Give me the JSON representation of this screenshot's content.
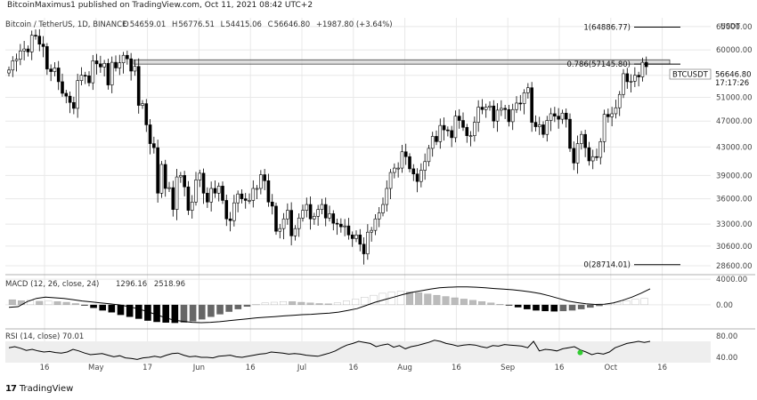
{
  "header": {
    "text": "BitcoinMaximus1 published on TradingView.com, Oct 11, 2021 08:42 UTC+2"
  },
  "footer": {
    "logo": "17",
    "brand": "TradingView"
  },
  "symbol": {
    "title": "Bitcoin / TetherUS, 1D, BINANCE",
    "ohlc": [
      {
        "label": "O",
        "value": "54659.01"
      },
      {
        "label": "H",
        "value": "56776.51"
      },
      {
        "label": "L",
        "value": "54415.06"
      },
      {
        "label": "C",
        "value": "56646.80"
      },
      {
        "label": "",
        "value": "+1987.80 (+3.64%)"
      }
    ],
    "ticker": "BTCUSDT",
    "last_price": "56646.80",
    "countdown": "17:17:26"
  },
  "colors": {
    "background": "#ffffff",
    "up": "#ffffff",
    "down": "#000000",
    "grid": "#e8e8e8",
    "line": "#000000",
    "rsi_band": "#eeeeee",
    "signal_dot": "#32cd32"
  },
  "chart_data": [
    {
      "type": "candlestick",
      "title": "Bitcoin / TetherUS, 1D, BINANCE",
      "currency_label": "USDT",
      "x_ticks": [
        "16",
        "May",
        "17",
        "Jun",
        "16",
        "Jul",
        "16",
        "Aug",
        "16",
        "Sep",
        "16",
        "Oct",
        "16"
      ],
      "y_ticks": [
        28600,
        30600,
        33000,
        36000,
        39000,
        43000,
        47000,
        51000,
        55000,
        60000,
        65000
      ],
      "y_tick_labels": [
        "28600.00",
        "30600.00",
        "33000.00",
        "36000.00",
        "39000.00",
        "43000.00",
        "47000.00",
        "51000.00",
        "55000.00",
        "60000.00",
        "65000.00"
      ],
      "y_scale": "log",
      "ylim": [
        28000,
        67000
      ],
      "date_range": [
        "2021-04-07",
        "2021-10-10"
      ],
      "candles_close": [
        56000,
        57800,
        58100,
        59800,
        60200,
        59600,
        63100,
        62900,
        61200,
        60700,
        56200,
        55700,
        56400,
        53800,
        51700,
        51200,
        50100,
        49100,
        54000,
        55000,
        54900,
        53600,
        57800,
        57200,
        56600,
        57300,
        53200,
        57500,
        56400,
        57400,
        58900,
        58200,
        55800,
        56700,
        49600,
        49900,
        46400,
        43500,
        42900,
        36700,
        40500,
        37300,
        37400,
        34700,
        38800,
        39000,
        37500,
        34600,
        35600,
        38400,
        39300,
        36700,
        35600,
        37300,
        36700,
        37600,
        35800,
        33600,
        33400,
        35500,
        36600,
        36000,
        35800,
        35800,
        37300,
        37300,
        39100,
        38300,
        35600,
        35100,
        32200,
        32500,
        33600,
        34600,
        31700,
        32500,
        33700,
        34600,
        35300,
        33600,
        33900,
        34700,
        35300,
        33700,
        34200,
        33100,
        33000,
        32700,
        32800,
        31800,
        31400,
        31800,
        30800,
        29800,
        32100,
        32300,
        33600,
        34300,
        35300,
        37300,
        39400,
        40000,
        40000,
        42300,
        41600,
        39900,
        39200,
        38200,
        39700,
        40900,
        42800,
        44600,
        43800,
        46300,
        45600,
        45500,
        44400,
        47800,
        47100,
        46000,
        44700,
        44700,
        46800,
        49300,
        48900,
        49300,
        49500,
        47000,
        48800,
        49100,
        48900,
        46900,
        48900,
        50000,
        49900,
        51800,
        52700,
        46800,
        46100,
        46400,
        44900,
        47100,
        48200,
        47800,
        47300,
        48300,
        47300,
        42800,
        40700,
        43500,
        44900,
        42900,
        41000,
        41600,
        41500,
        43800,
        48100,
        47700,
        48200,
        49200,
        51500,
        55300,
        53800,
        53900,
        55000,
        54700,
        57500,
        56650
      ],
      "level_lines": [
        {
          "label": "1(64886.77)",
          "value": 64886.77
        },
        {
          "label": "0.786(57145.80)",
          "value": 57145.8
        },
        {
          "label": "0(28714.01)",
          "value": 28714.01
        }
      ],
      "resistance_zone": [
        57145.8,
        58000
      ]
    },
    {
      "type": "bar+line",
      "title": "MACD (12, 26, close, 24)",
      "values_text": [
        "1296.16",
        "2518.96"
      ],
      "y_ticks": [
        0,
        4000
      ],
      "y_tick_labels": [
        "0.00",
        "4000.00"
      ],
      "ylim": [
        -3500,
        4300
      ],
      "histogram": [
        800,
        650,
        700,
        550,
        600,
        500,
        400,
        200,
        -100,
        -500,
        -900,
        -1200,
        -1600,
        -1900,
        -2200,
        -2500,
        -2700,
        -2800,
        -2850,
        -2800,
        -2600,
        -2300,
        -1900,
        -1500,
        -1100,
        -700,
        -300,
        100,
        300,
        400,
        500,
        500,
        400,
        300,
        200,
        150,
        300,
        600,
        900,
        1200,
        1500,
        1800,
        2000,
        2100,
        2000,
        1900,
        1700,
        1500,
        1300,
        1100,
        900,
        700,
        500,
        300,
        100,
        -100,
        -400,
        -700,
        -900,
        -1000,
        -1050,
        -1000,
        -900,
        -700,
        -450,
        -200,
        100,
        400,
        650,
        850,
        1000
      ],
      "line": [
        -400,
        -300,
        500,
        1000,
        1200,
        1100,
        1000,
        800,
        600,
        450,
        300,
        150,
        0,
        -250,
        -600,
        -1000,
        -1500,
        -2000,
        -2400,
        -2600,
        -2750,
        -2800,
        -2750,
        -2650,
        -2500,
        -2350,
        -2200,
        -2050,
        -1950,
        -1850,
        -1750,
        -1650,
        -1550,
        -1500,
        -1400,
        -1300,
        -1150,
        -900,
        -600,
        -100,
        400,
        800,
        1200,
        1600,
        1950,
        2200,
        2450,
        2650,
        2750,
        2800,
        2800,
        2750,
        2650,
        2550,
        2450,
        2350,
        2200,
        2000,
        1750,
        1400,
        1000,
        600,
        350,
        150,
        50,
        100,
        300,
        700,
        1200,
        1800,
        2500
      ]
    },
    {
      "type": "line",
      "title": "RSI (14, close)",
      "value_text": "70.01",
      "y_ticks": [
        40,
        80
      ],
      "y_tick_labels": [
        "40.00",
        "80.00"
      ],
      "ylim": [
        30,
        90
      ],
      "bands": [
        30,
        70
      ],
      "values": [
        58,
        60,
        57,
        53,
        55,
        52,
        50,
        51,
        49,
        48,
        50,
        55,
        52,
        48,
        45,
        46,
        47,
        44,
        41,
        43,
        39,
        38,
        36,
        39,
        40,
        42,
        40,
        44,
        47,
        48,
        44,
        41,
        42,
        40,
        40,
        39,
        42,
        43,
        44,
        41,
        40,
        42,
        44,
        46,
        47,
        50,
        49,
        48,
        46,
        47,
        46,
        44,
        43,
        42,
        45,
        48,
        52,
        58,
        63,
        66,
        70,
        68,
        66,
        60,
        63,
        65,
        59,
        62,
        56,
        60,
        62,
        65,
        68,
        72,
        70,
        66,
        64,
        61,
        63,
        64,
        63,
        60,
        58,
        62,
        61,
        64,
        63,
        62,
        61,
        58,
        70,
        52,
        55,
        54,
        52,
        56,
        58,
        60,
        54,
        50,
        45,
        48,
        46,
        50,
        58,
        62,
        66,
        68,
        70,
        68,
        70
      ],
      "signal_marker_index": 98
    }
  ]
}
